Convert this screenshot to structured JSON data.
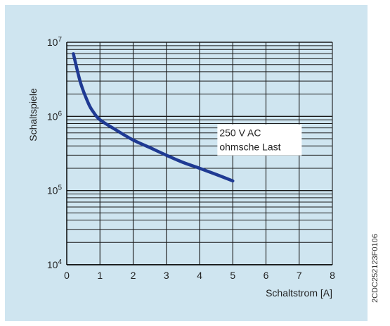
{
  "chart_data": {
    "type": "line",
    "title": "",
    "xlabel": "Schaltstrom [A]",
    "ylabel": "Schaltspiele",
    "xlim": [
      0,
      8
    ],
    "ylim": [
      10000,
      10000000
    ],
    "yscale": "log",
    "grid": true,
    "x_ticks": [
      "0",
      "1",
      "2",
      "3",
      "4",
      "5",
      "6",
      "7",
      "8"
    ],
    "y_ticks": [
      {
        "base": "10",
        "exp": "4",
        "value": 10000
      },
      {
        "base": "10",
        "exp": "5",
        "value": 100000
      },
      {
        "base": "10",
        "exp": "6",
        "value": 1000000
      },
      {
        "base": "10",
        "exp": "7",
        "value": 10000000
      }
    ],
    "series": [
      {
        "annotation": [
          "250 V AC",
          "ohmsche Last"
        ],
        "color": "#1f3a93",
        "x": [
          0.2,
          0.3,
          0.4,
          0.5,
          0.6,
          0.7,
          0.8,
          1.0,
          1.5,
          2.0,
          2.5,
          3.0,
          3.5,
          4.0,
          4.5,
          5.0
        ],
        "y": [
          7000000,
          4500000,
          3000000,
          2200000,
          1700000,
          1350000,
          1150000,
          900000,
          650000,
          480000,
          380000,
          300000,
          240000,
          200000,
          165000,
          135000
        ]
      }
    ]
  },
  "doc_code": "2CDC252123F0106"
}
